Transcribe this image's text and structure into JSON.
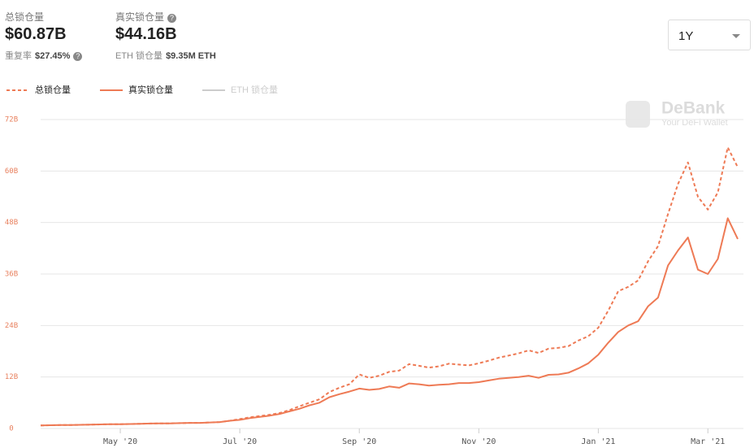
{
  "header": {
    "tvl_label": "总锁仓量",
    "tvl_value": "$60.87B",
    "dup_label": "重复率",
    "dup_value": "$27.45%",
    "real_label": "真实锁仓量",
    "real_value": "$44.16B",
    "eth_label": "ETH 锁仓量",
    "eth_value": "$9.35M ETH",
    "range": "1Y",
    "brand": "DeBank",
    "brand_sub": "Your DeFi Wallet"
  },
  "chart_data": {
    "type": "line",
    "categories": [
      null,
      null,
      null,
      null,
      null,
      null,
      null,
      null,
      "May '20",
      null,
      null,
      null,
      null,
      null,
      null,
      null,
      null,
      null,
      null,
      null,
      "Jul '20",
      null,
      null,
      null,
      null,
      null,
      null,
      null,
      null,
      null,
      null,
      null,
      "Sep '20",
      null,
      null,
      null,
      null,
      null,
      null,
      null,
      null,
      null,
      null,
      null,
      "Nov '20",
      null,
      null,
      null,
      null,
      null,
      null,
      null,
      null,
      null,
      null,
      null,
      "Jan '21",
      null,
      null,
      null,
      null,
      null,
      null,
      null,
      null,
      null,
      null,
      "Mar '21",
      null,
      null,
      null
    ],
    "series": [
      {
        "name": "总锁仓量",
        "color": "#ee7a55",
        "dash": true,
        "values": [
          0.7,
          0.75,
          0.8,
          0.8,
          0.85,
          0.9,
          0.95,
          1.0,
          1.0,
          1.05,
          1.1,
          1.15,
          1.2,
          1.2,
          1.25,
          1.3,
          1.3,
          1.4,
          1.5,
          1.8,
          2.2,
          2.6,
          2.9,
          3.2,
          3.6,
          4.3,
          5.2,
          6.0,
          6.8,
          8.5,
          9.5,
          10.3,
          12.6,
          11.8,
          12.3,
          13.2,
          13.5,
          15.0,
          14.6,
          14.2,
          14.5,
          15.1,
          14.9,
          14.7,
          15.2,
          15.8,
          16.5,
          17.0,
          17.5,
          18.2,
          17.6,
          18.6,
          18.8,
          19.2,
          20.5,
          21.5,
          23.5,
          27.5,
          32,
          33,
          34.5,
          39,
          42.5,
          50,
          57,
          62,
          54,
          51,
          55,
          65.5,
          60.87
        ]
      },
      {
        "name": "真实锁仓量",
        "color": "#ee7a55",
        "dash": false,
        "values": [
          0.7,
          0.75,
          0.8,
          0.8,
          0.85,
          0.9,
          0.95,
          1.0,
          1.0,
          1.05,
          1.1,
          1.15,
          1.2,
          1.2,
          1.25,
          1.3,
          1.3,
          1.4,
          1.5,
          1.8,
          2.0,
          2.4,
          2.7,
          3.0,
          3.4,
          4.0,
          4.6,
          5.4,
          6.0,
          7.3,
          8.0,
          8.6,
          9.3,
          9.0,
          9.2,
          9.8,
          9.5,
          10.5,
          10.3,
          10.0,
          10.2,
          10.3,
          10.6,
          10.6,
          10.8,
          11.2,
          11.6,
          11.8,
          12.0,
          12.3,
          11.8,
          12.5,
          12.6,
          13.0,
          14.0,
          15.2,
          17.2,
          20,
          22.5,
          24,
          25,
          28.5,
          30.5,
          38,
          41.5,
          44.5,
          37,
          36,
          39.5,
          49,
          44.16
        ]
      },
      {
        "name": "ETH 锁仓量",
        "color": "#cccccc",
        "dash": false,
        "values": [
          null,
          null,
          null,
          null,
          null,
          null,
          null,
          null,
          null,
          null,
          null,
          null,
          null,
          null,
          null,
          null,
          null,
          null,
          null,
          null,
          null,
          null,
          null,
          null,
          null,
          null,
          null,
          null,
          null,
          null,
          null,
          null,
          null,
          null,
          null,
          null,
          null,
          null,
          null,
          null,
          null,
          null,
          null,
          null,
          null,
          null,
          null,
          null,
          null,
          null,
          null,
          null,
          null,
          null,
          null,
          null,
          null,
          null,
          null,
          null,
          null,
          null,
          null,
          null,
          null,
          null,
          null,
          null,
          null,
          null,
          null
        ]
      }
    ],
    "ylim": [
      0,
      72
    ],
    "yticks": [
      0,
      {
        "value": 12,
        "label": "12B"
      },
      {
        "value": 24,
        "label": "24B"
      },
      {
        "value": 36,
        "label": "36B"
      },
      {
        "value": 48,
        "label": "48B"
      },
      {
        "value": 60,
        "label": "60B"
      },
      {
        "value": 72,
        "label": "72B"
      }
    ],
    "grid": true
  }
}
